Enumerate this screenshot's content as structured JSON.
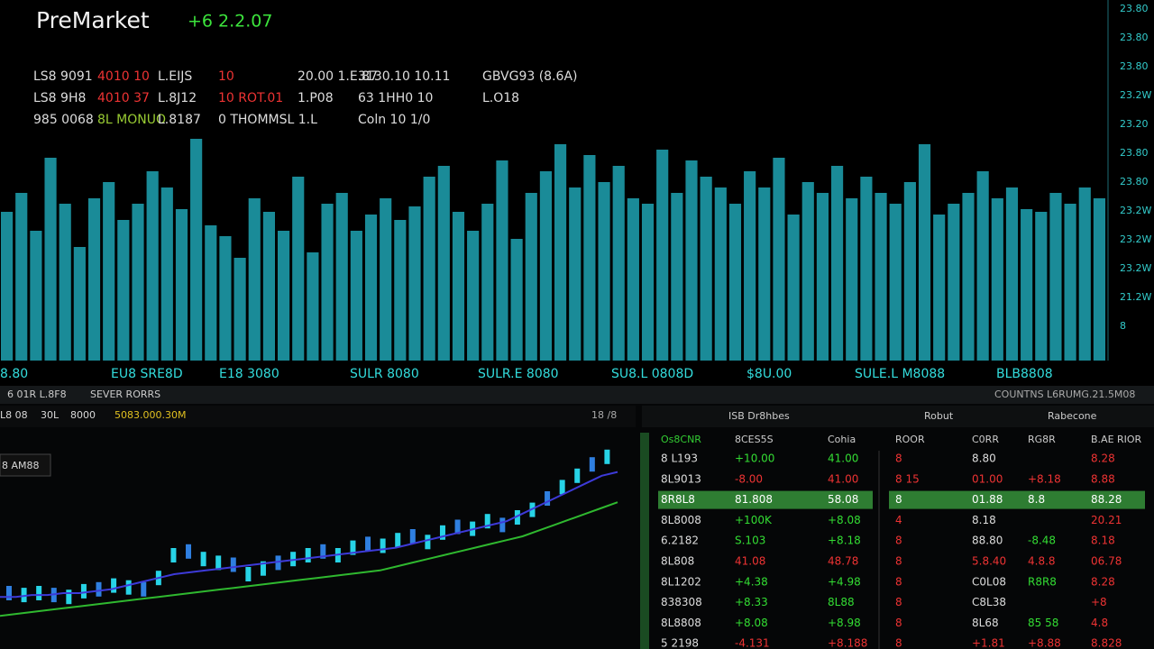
{
  "header": {
    "title": "PreMarket",
    "change": "+6 2.2.07"
  },
  "stats": [
    [
      "LS8 9091",
      "4010 10",
      "L.EIJS",
      "10",
      "20.00 1.E.87",
      "3130.10 10.11",
      "GBVG93 (8.6A)"
    ],
    [
      "LS8 9H8",
      "4010 37",
      "L.8J12",
      "10 ROT.01",
      "1.P08",
      "63 1HH0 10",
      "L.O18"
    ],
    [
      "985 0068",
      "8L MONUO",
      "L.8187",
      "0 THOMMSL 1.L",
      "Coln 10 1/0"
    ]
  ],
  "volume_chart": {
    "type": "bar",
    "color": "#1fa3b3",
    "ylim": [
      0,
      100
    ],
    "values": [
      55,
      62,
      48,
      75,
      58,
      42,
      60,
      66,
      52,
      58,
      70,
      64,
      56,
      82,
      50,
      46,
      38,
      60,
      55,
      48,
      68,
      40,
      58,
      62,
      48,
      54,
      60,
      52,
      57,
      68,
      72,
      55,
      48,
      58,
      74,
      45,
      62,
      70,
      80,
      64,
      76,
      66,
      72,
      60,
      58,
      78,
      62,
      74,
      68,
      64,
      58,
      70,
      64,
      75,
      54,
      66,
      62,
      72,
      60,
      68,
      62,
      58,
      66,
      80,
      54,
      58,
      62,
      70,
      60,
      64,
      56,
      55,
      62,
      58,
      64,
      60
    ],
    "y_labels": [
      "23.80",
      "23.80",
      "23.80",
      "23.2W",
      "23.20",
      "23.80",
      "23.80",
      "23.2W",
      "23.2W",
      "23.2W",
      "21.2W",
      "8"
    ],
    "x_labels": [
      "8.80",
      "EU8 SRE8D",
      "E18 3080",
      "SULR 8080",
      "SULR.E 8080",
      "SU8.L 0808D",
      "$8U.00",
      "SULE.L M8088",
      "BLB8808"
    ]
  },
  "lower": {
    "tabs": [
      "6 01R L.8F8",
      "SEVER RORRS"
    ],
    "info": [
      "L8 08",
      "30L",
      "8000",
      "5083.000.30M"
    ],
    "price_tag": "8 AM88",
    "corner": "18 /8",
    "right_header": "COUNTNS L6RUMG.21.5M08",
    "panel_titles": [
      "ISB Dr8hbes",
      "Robut",
      "Rabecone"
    ]
  },
  "price_chart": {
    "type": "candlestick",
    "ylim": [
      0,
      100
    ],
    "color_up": "#27d3e6",
    "color_alt": "#2f7fe0",
    "values": [
      20,
      19,
      20,
      19,
      18,
      21,
      22,
      24,
      23,
      22,
      28,
      40,
      42,
      38,
      36,
      35,
      30,
      33,
      36,
      38,
      40,
      42,
      40,
      44,
      46,
      45,
      48,
      50,
      47,
      52,
      55,
      54,
      58,
      56,
      60,
      64,
      70,
      76,
      82,
      88,
      92
    ],
    "ma_fast": [
      18,
      18,
      19,
      19,
      20,
      20,
      21,
      22,
      24,
      26,
      28,
      30,
      31,
      32,
      33,
      34,
      35,
      36,
      37,
      38,
      39,
      40,
      41,
      42,
      43,
      44,
      46,
      48,
      50,
      52,
      54,
      56,
      58,
      62,
      66,
      70,
      74,
      78,
      82,
      84
    ],
    "ma_slow": [
      8,
      9,
      10,
      11,
      12,
      13,
      14,
      15,
      16,
      17,
      18,
      19,
      20,
      21,
      22,
      23,
      24,
      25,
      26,
      27,
      28,
      29,
      30,
      31,
      32,
      34,
      36,
      38,
      40,
      42,
      44,
      46,
      48,
      50,
      53,
      56,
      59,
      62,
      65,
      68
    ]
  },
  "table": {
    "headers": [
      "Os8CNR",
      "8CES5S",
      "Cohia",
      "ROOR",
      "C0RR",
      "RG8R",
      "B.AE RIOR"
    ],
    "rows": [
      [
        "8 L193",
        "+10.00",
        "41.00",
        "8",
        "8.80",
        "",
        "8.28"
      ],
      [
        "8L9013",
        "-8.00",
        "41.00",
        "8 15",
        "01.00",
        "+8.18",
        "8.88"
      ],
      [
        "8R8L8",
        "81.808",
        "58.08",
        "8",
        "01.88",
        "8.8",
        "88.28"
      ],
      [
        "8L8008",
        "+100K",
        "+8.08",
        "4",
        "8.18",
        "",
        "20.21"
      ],
      [
        "6.2182",
        "S.103",
        "+8.18",
        "8",
        "88.80",
        "-8.48",
        "8.18"
      ],
      [
        "8L808",
        "41.08",
        "48.78",
        "8",
        "5.8.40",
        "4.8.8",
        "06.78"
      ],
      [
        "8L1202",
        "+4.38",
        "+4.98",
        "8",
        "C0L08",
        "R8R8",
        "8.28"
      ],
      [
        "838308",
        "+8.33",
        "8L88",
        "8",
        "C8L38",
        "",
        "+8"
      ],
      [
        "8L8808",
        "+8.08",
        "+8.98",
        "8",
        "8L68",
        "85 58",
        "4.8"
      ],
      [
        "5 2198",
        "-4.131",
        "+8.188",
        "8",
        "+1.81",
        "+8.88",
        "8.828"
      ]
    ]
  }
}
